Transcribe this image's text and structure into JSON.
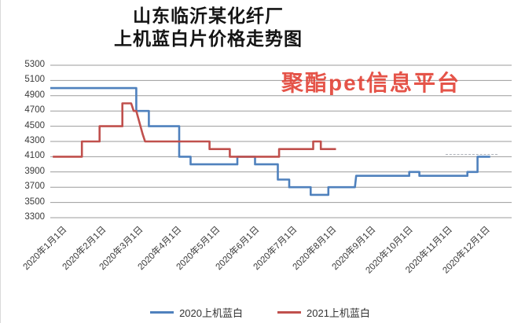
{
  "title": {
    "line1": "山东临沂某化纤厂",
    "line2": "上机蓝白片价格走势图"
  },
  "watermark": {
    "text": "聚酯pet信息平台",
    "color": "#e13c30"
  },
  "legend": [
    {
      "label": "2020上机蓝白",
      "color": "#4f81bd"
    },
    {
      "label": "2021上机蓝白",
      "color": "#c0504d"
    }
  ],
  "chart_data": {
    "type": "line",
    "title": "山东临沂某化纤厂 上机蓝白片价格走势图",
    "xlabel": "",
    "ylabel": "",
    "ylim": [
      3300,
      5300
    ],
    "ytick_step": 200,
    "yticks": [
      5300,
      5100,
      4900,
      4700,
      4500,
      4300,
      4100,
      3900,
      3700,
      3500,
      3300
    ],
    "xticks": [
      "2020年1月1日",
      "2020年2月1日",
      "2020年3月1日",
      "2020年4月1日",
      "2020年5月1日",
      "2020年6月1日",
      "2020年7月1日",
      "2020年8月1日",
      "2020年9月1日",
      "2020年10月1日",
      "2020年11月1日",
      "2020年12月1日"
    ],
    "grid": true,
    "legend_position": "bottom",
    "series": [
      {
        "name": "2020上机蓝白",
        "color": "#4f81bd",
        "points": [
          [
            "1/1",
            5000
          ],
          [
            "3/9",
            5000
          ],
          [
            "3/9",
            4700
          ],
          [
            "3/19",
            4700
          ],
          [
            "3/19",
            4500
          ],
          [
            "4/12",
            4500
          ],
          [
            "4/12",
            4100
          ],
          [
            "4/21",
            4100
          ],
          [
            "4/21",
            4000
          ],
          [
            "5/28",
            4000
          ],
          [
            "5/28",
            4100
          ],
          [
            "6/11",
            4100
          ],
          [
            "6/11",
            4000
          ],
          [
            "6/29",
            4000
          ],
          [
            "6/29",
            3800
          ],
          [
            "7/8",
            3800
          ],
          [
            "7/8",
            3700
          ],
          [
            "7/25",
            3700
          ],
          [
            "7/25",
            3600
          ],
          [
            "8/8",
            3600
          ],
          [
            "8/8",
            3700
          ],
          [
            "8/29",
            3700
          ],
          [
            "8/30",
            3850
          ],
          [
            "10/11",
            3850
          ],
          [
            "10/11",
            3900
          ],
          [
            "10/19",
            3900
          ],
          [
            "10/19",
            3850
          ],
          [
            "11/26",
            3850
          ],
          [
            "11/26",
            3900
          ],
          [
            "12/4",
            3900
          ],
          [
            "12/4",
            4100
          ],
          [
            "12/14",
            4100
          ]
        ]
      },
      {
        "name": "2021上机蓝白",
        "color": "#c0504d",
        "points": [
          [
            "1/3",
            4100
          ],
          [
            "1/26",
            4100
          ],
          [
            "1/26",
            4300
          ],
          [
            "2/9",
            4300
          ],
          [
            "2/9",
            4500
          ],
          [
            "2/27",
            4500
          ],
          [
            "2/27",
            4800
          ],
          [
            "3/5",
            4800
          ],
          [
            "3/7",
            4700
          ],
          [
            "3/9",
            4700
          ],
          [
            "3/14",
            4400
          ],
          [
            "3/16",
            4300
          ],
          [
            "5/6",
            4300
          ],
          [
            "5/6",
            4200
          ],
          [
            "5/22",
            4200
          ],
          [
            "5/22",
            4100
          ],
          [
            "6/30",
            4100
          ],
          [
            "6/30",
            4200
          ],
          [
            "7/27",
            4200
          ],
          [
            "7/27",
            4300
          ],
          [
            "8/2",
            4300
          ],
          [
            "8/2",
            4200
          ],
          [
            "8/14",
            4200
          ]
        ]
      }
    ]
  }
}
